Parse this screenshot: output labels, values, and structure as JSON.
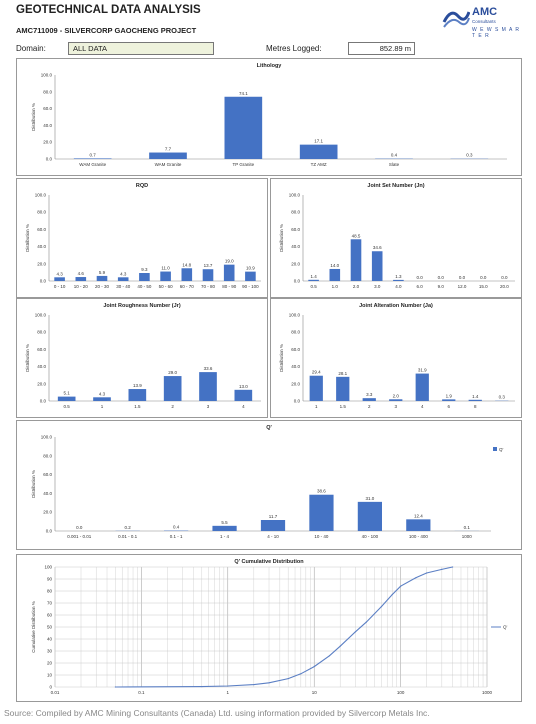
{
  "header": {
    "title": "GEOTECHNICAL DATA ANALYSIS",
    "project": "AMC711009 - SILVERCORP GAOCHENG PROJECT",
    "domain_label": "Domain:",
    "domain_value": "ALL DATA",
    "metres_label": "Metres Logged:",
    "metres_value": "852.89 m"
  },
  "logo": {
    "name": "AMC",
    "sub": "Consultants",
    "tag": "W E W   S M A R T E R"
  },
  "source": "Source: Compiled by AMC Mining Consultants (Canada) Ltd. using information provided by Silvercorp Metals Inc.",
  "colors": {
    "bar": "#4472c4",
    "line": "#5b7fc4"
  },
  "chart_data": [
    {
      "id": "lithology",
      "type": "bar",
      "title": "Lithology",
      "ylabel": "Distribution %",
      "ylim": [
        0,
        100
      ],
      "yticks": [
        "0.0",
        "20.0",
        "40.0",
        "60.0",
        "80.0",
        "100.0"
      ],
      "categories": [
        "WAM Granite",
        "WAM Granite",
        "TP Granite",
        "TZ AMZ",
        "Slate",
        ""
      ],
      "values": [
        0.7,
        7.7,
        74.1,
        17.1,
        0.4,
        0.3
      ]
    },
    {
      "id": "rqd",
      "type": "bar",
      "title": "RQD",
      "ylabel": "Distribution %",
      "ylim": [
        0,
        100
      ],
      "yticks": [
        "0.0",
        "20.0",
        "40.0",
        "60.0",
        "80.0",
        "100.0"
      ],
      "categories": [
        "0 - 10",
        "10 - 20",
        "20 - 30",
        "30 - 40",
        "40 - 50",
        "50 - 60",
        "60 - 70",
        "70 - 80",
        "80 - 90",
        "90 - 100"
      ],
      "values": [
        4.3,
        4.6,
        5.9,
        4.3,
        9.3,
        11.0,
        14.8,
        13.7,
        19.0,
        10.9
      ],
      "labels": [
        "4.3",
        "4.6",
        "5.9",
        "4.3",
        "9.3",
        "11.0",
        "14.8",
        "13.7",
        "19.0",
        "10.9"
      ]
    },
    {
      "id": "jn",
      "type": "bar",
      "title": "Joint Set Number (Jn)",
      "ylabel": "Distribution %",
      "ylim": [
        0,
        100
      ],
      "yticks": [
        "0.0",
        "20.0",
        "40.0",
        "60.0",
        "80.0",
        "100.0"
      ],
      "categories": [
        "0.5",
        "1.0",
        "2.0",
        "3.0",
        "4.0",
        "6.0",
        "9.0",
        "12.0",
        "15.0",
        "20.0"
      ],
      "values": [
        1.4,
        14.0,
        48.5,
        34.6,
        1.3,
        0.0,
        0.0,
        0.0,
        0.0,
        0.0
      ],
      "labels": [
        "1.4",
        "14.0",
        "48.5",
        "34.6",
        "1.3",
        "0.0",
        "0.0",
        "0.0",
        "0.0",
        "0.0"
      ]
    },
    {
      "id": "jr",
      "type": "bar",
      "title": "Joint Roughness Number (Jr)",
      "ylabel": "Distribution %",
      "ylim": [
        0,
        100
      ],
      "yticks": [
        "0.0",
        "20.0",
        "40.0",
        "60.0",
        "80.0",
        "100.0"
      ],
      "categories": [
        "0.5",
        "1",
        "1.5",
        "2",
        "3",
        "4"
      ],
      "values": [
        5.1,
        4.3,
        13.9,
        29.0,
        33.6,
        13.0
      ],
      "labels": [
        "5.1",
        "4.3",
        "13.9",
        "29.0",
        "33.6",
        "13.0"
      ]
    },
    {
      "id": "ja",
      "type": "bar",
      "title": "Joint Alteration Number (Ja)",
      "ylabel": "Distribution %",
      "ylim": [
        0,
        100
      ],
      "yticks": [
        "0.0",
        "20.0",
        "40.0",
        "60.0",
        "80.0",
        "100.0"
      ],
      "categories": [
        "1",
        "1.5",
        "2",
        "3",
        "4",
        "6",
        "8",
        ""
      ],
      "values": [
        29.4,
        28.1,
        3.3,
        2.0,
        31.9,
        1.9,
        1.4,
        0.3
      ],
      "labels": [
        "29.4",
        "28.1",
        "3.3",
        "2.0",
        "31.9",
        "1.9",
        "1.4",
        "0.3"
      ]
    },
    {
      "id": "qprime",
      "type": "bar",
      "title": "Q'",
      "ylabel": "Distribution %",
      "ylim": [
        0,
        100
      ],
      "yticks": [
        "0.0",
        "20.0",
        "40.0",
        "60.0",
        "80.0",
        "100.0"
      ],
      "categories": [
        "0.001 - 0.01",
        "0.01 - 0.1",
        "0.1 - 1",
        "1 - 4",
        "4 - 10",
        "10 - 40",
        "40 - 100",
        "100 - 400",
        "1000"
      ],
      "values": [
        0.0,
        0.2,
        0.4,
        5.5,
        11.7,
        38.6,
        31.0,
        12.4,
        0.1
      ],
      "labels": [
        "0.0",
        "0.2",
        "0.4",
        "5.5",
        "11.7",
        "38.6",
        "31.0",
        "12.4",
        "0.1"
      ],
      "legend": "Q'",
      "legend_position": "top-right"
    },
    {
      "id": "qcum",
      "type": "line",
      "title": "Q' Cumulative Distribution",
      "ylabel": "Cumulative Distribution %",
      "ylim": [
        0,
        100
      ],
      "xscale": "log",
      "xlim": [
        0.01,
        1000
      ],
      "yticks": [
        "0",
        "10",
        "20",
        "30",
        "40",
        "50",
        "60",
        "70",
        "80",
        "90",
        "100"
      ],
      "xticks": [
        "0.01",
        "0.1",
        "1",
        "10",
        "100",
        "1000"
      ],
      "legend": "Q'",
      "legend_position": "right",
      "x": [
        0.05,
        0.5,
        1,
        2,
        3,
        5,
        7,
        10,
        15,
        20,
        30,
        40,
        60,
        80,
        100,
        150,
        200,
        300,
        400
      ],
      "y": [
        0,
        0.3,
        0.8,
        2,
        3.5,
        7,
        11,
        17,
        26,
        34,
        46,
        54,
        67,
        77,
        84,
        91,
        95,
        98,
        100
      ]
    }
  ]
}
